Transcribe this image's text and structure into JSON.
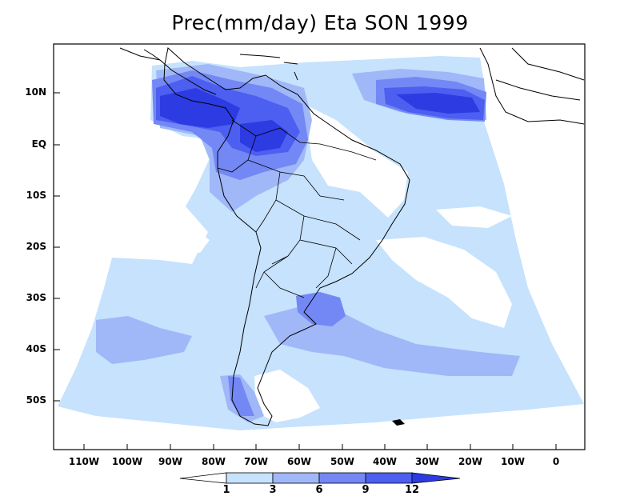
{
  "title": "Prec(mm/day) Eta SON 1999",
  "y_ticks": [
    "10N",
    "EQ",
    "10S",
    "20S",
    "30S",
    "40S",
    "50S"
  ],
  "x_ticks": [
    "110W",
    "100W",
    "90W",
    "80W",
    "70W",
    "60W",
    "50W",
    "40W",
    "30W",
    "20W",
    "10W",
    "0"
  ],
  "colorbar": {
    "labels": [
      "1",
      "3",
      "6",
      "9",
      "12"
    ],
    "colors": [
      "#ffffff",
      "#c6e2fd",
      "#a0b7f8",
      "#7388f4",
      "#4d5ff0",
      "#2d3be3"
    ]
  },
  "colors": {
    "land_outline": "#000000",
    "level1": "#c6e2fd",
    "level2": "#a0b7f8",
    "level3": "#7388f4",
    "level4": "#4d5ff0",
    "level5": "#2d3be3"
  }
}
